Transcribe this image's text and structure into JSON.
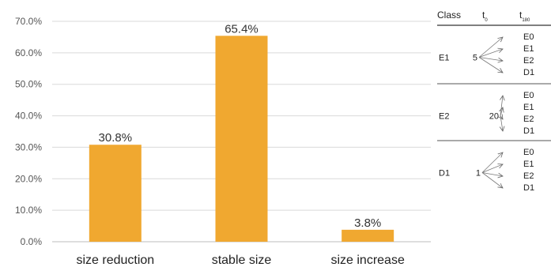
{
  "chart_data": {
    "type": "bar",
    "categories": [
      "size reduction",
      "stable size",
      "size increase"
    ],
    "values": [
      30.8,
      65.4,
      3.8
    ],
    "value_labels": [
      "30.8%",
      "65.4%",
      "3.8%"
    ],
    "yticks": [
      "0.0%",
      "10.0%",
      "20.0%",
      "30.0%",
      "40.0%",
      "50.0%",
      "60.0%",
      "70.0%"
    ],
    "ylim": [
      0,
      70
    ],
    "grid": true,
    "bar_color": "#f0a830",
    "title": "",
    "xlabel": "",
    "ylabel": ""
  },
  "transition_table": {
    "header": {
      "class": "Class",
      "t0": "t",
      "t0_sub": "0",
      "t180": "t",
      "t180_sub": "180"
    },
    "groups": [
      {
        "class": "E1",
        "count": "5",
        "targets": [
          "E0",
          "E1",
          "E2",
          "D1"
        ]
      },
      {
        "class": "E2",
        "count": "20",
        "targets": [
          "E0",
          "E1",
          "E2",
          "D1"
        ]
      },
      {
        "class": "D1",
        "count": "1",
        "targets": [
          "E0",
          "E1",
          "E2",
          "D1"
        ]
      }
    ]
  }
}
